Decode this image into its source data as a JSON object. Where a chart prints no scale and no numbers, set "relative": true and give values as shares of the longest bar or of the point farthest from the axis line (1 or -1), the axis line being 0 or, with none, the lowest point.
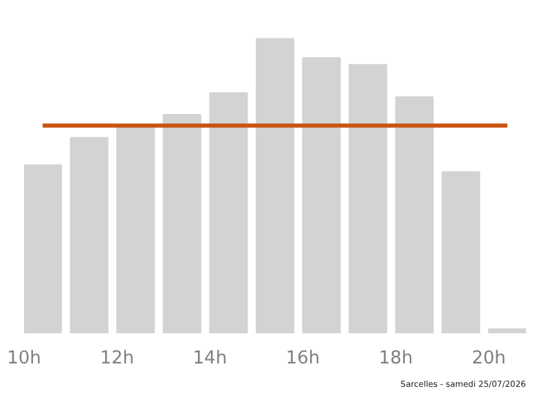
{
  "chart_data": {
    "type": "bar",
    "relative": true,
    "color": "#d3d3d3",
    "x": [
      10.4,
      11.4,
      12.4,
      13.4,
      14.4,
      15.4,
      16.4,
      17.4,
      18.4,
      19.4,
      20.4
    ],
    "values": [
      0.571,
      0.664,
      0.7,
      0.742,
      0.816,
      1,
      0.935,
      0.912,
      0.802,
      0.548,
      0.014
    ],
    "xlim": [
      10,
      20.8
    ],
    "xticks": [
      {
        "value": 10,
        "label": "10h"
      },
      {
        "value": 12,
        "label": "12h"
      },
      {
        "value": 14,
        "label": "14h"
      },
      {
        "value": 16,
        "label": "16h"
      },
      {
        "value": 18,
        "label": "18h"
      },
      {
        "value": 20,
        "label": "20h"
      }
    ],
    "ref_lines": [
      {
        "axis": "y",
        "value": 0.705,
        "label": null,
        "color": "#c85414"
      }
    ],
    "annotations": [
      "Sarcelles - samedi 25/07/2026"
    ],
    "grid": false
  }
}
